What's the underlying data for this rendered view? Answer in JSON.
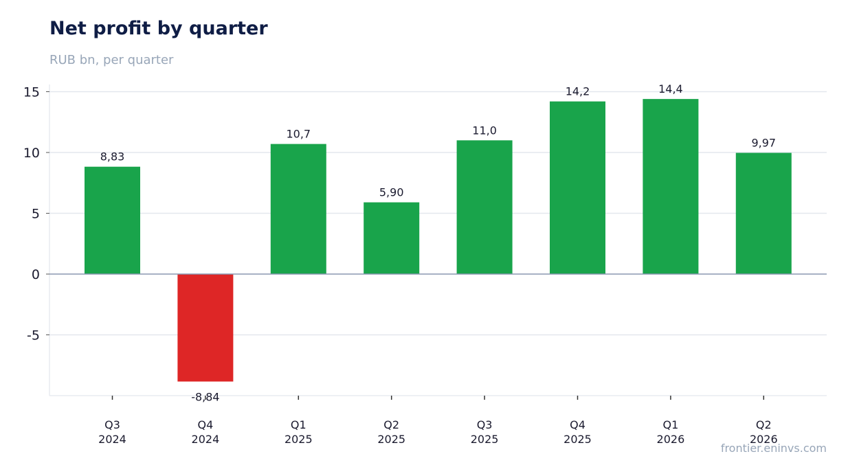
{
  "title": "Net profit by quarter",
  "subtitle": "RUB bn, per quarter",
  "source": "frontier.eninvs.com",
  "colors": {
    "positive": "#19a44b",
    "negative": "#de2626",
    "grid": "#e3e7ee",
    "zero": "#8a97b0"
  },
  "chart_data": {
    "type": "bar",
    "categories": [
      [
        "Q3",
        "2024"
      ],
      [
        "Q4",
        "2024"
      ],
      [
        "Q1",
        "2025"
      ],
      [
        "Q2",
        "2025"
      ],
      [
        "Q3",
        "2025"
      ],
      [
        "Q4",
        "2025"
      ],
      [
        "Q1",
        "2026"
      ],
      [
        "Q2",
        "2026"
      ]
    ],
    "values": [
      8.83,
      -8.84,
      10.7,
      5.9,
      11.0,
      14.2,
      14.4,
      9.97
    ],
    "value_labels": [
      "8,83",
      "-8,84",
      "10,7",
      "5,90",
      "11,0",
      "14,2",
      "14,4",
      "9,97"
    ],
    "yticks": [
      15,
      10,
      5,
      0,
      -5
    ],
    "ytick_labels": [
      "15",
      "10",
      "5",
      "0",
      "-5"
    ],
    "ylim": [
      -10,
      15.5
    ],
    "grid": true
  }
}
